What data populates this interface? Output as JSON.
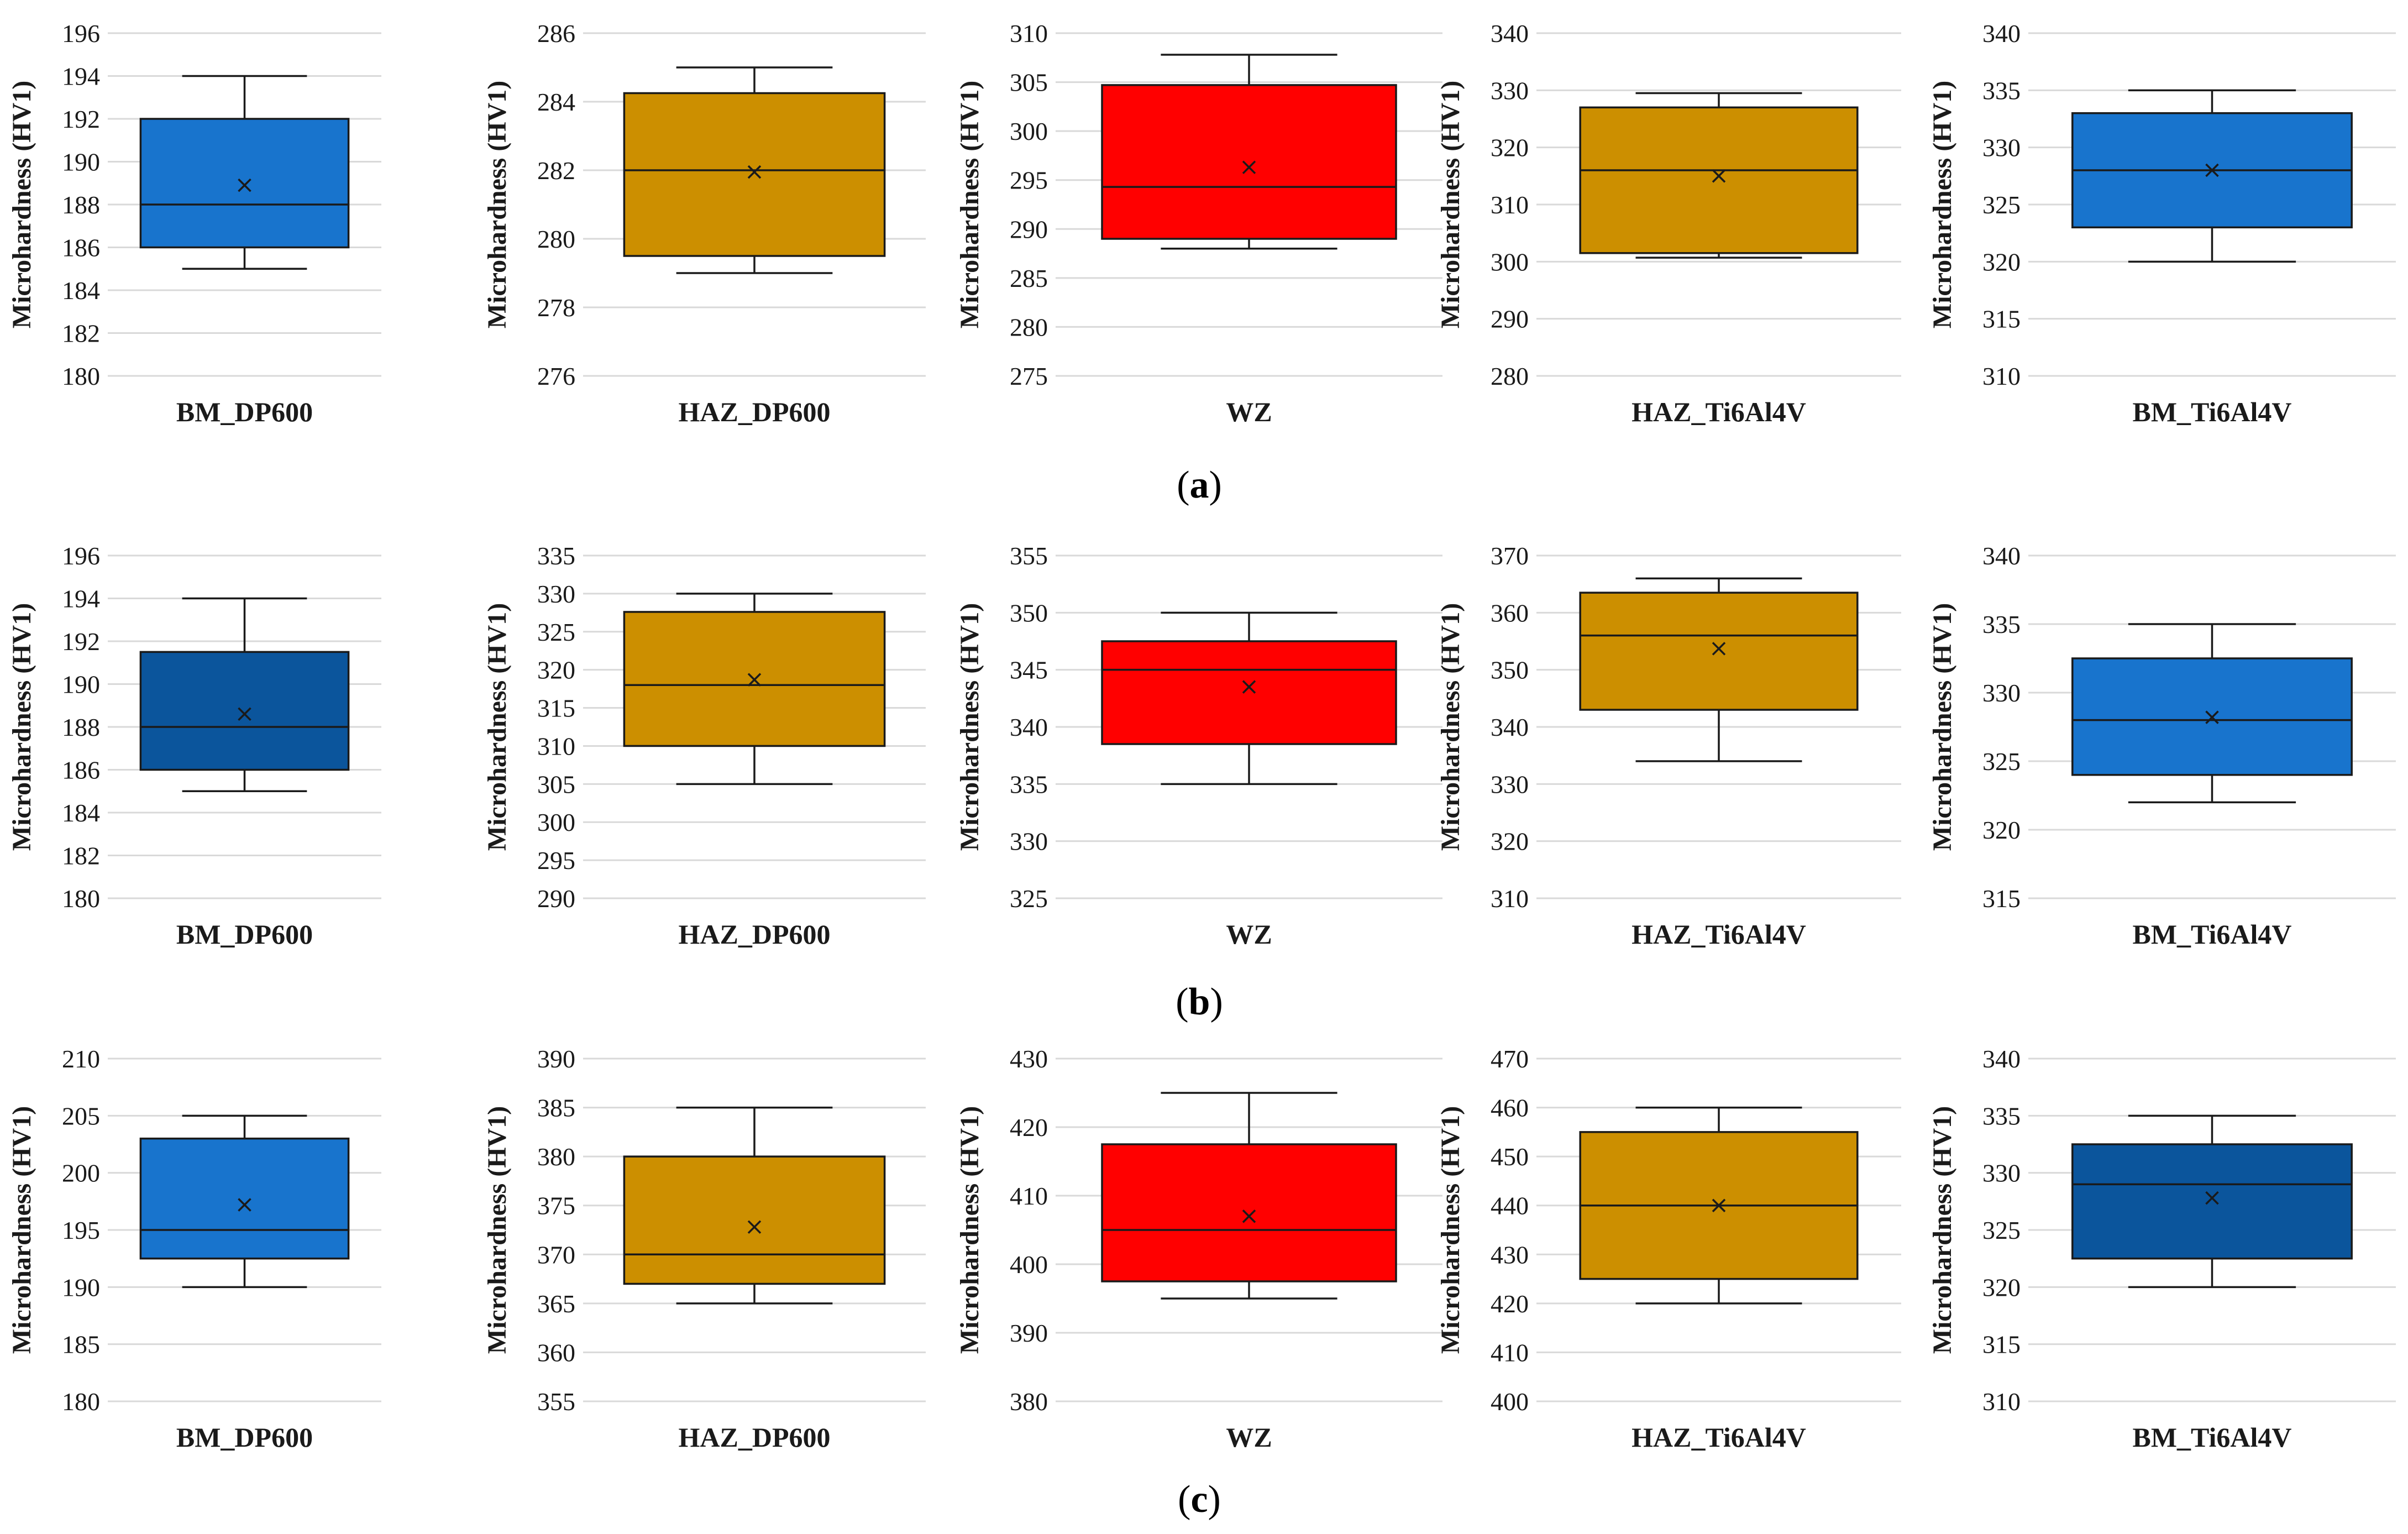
{
  "figure": {
    "captions": [
      "(a)",
      "(b)",
      "(c)"
    ],
    "caption_letters": [
      "a",
      "b",
      "c"
    ]
  },
  "colors": {
    "blue": "#1874cd",
    "dark_blue": "#0b559c",
    "gold": "#cc8f00",
    "red": "#ff0000"
  },
  "chart_data": [
    {
      "type": "box",
      "row": "a",
      "title": "BM_DP600",
      "ylabel": "Microhardness (HV1)",
      "ylim": [
        180,
        196
      ],
      "yticks": [
        180,
        182,
        184,
        186,
        188,
        190,
        192,
        194,
        196
      ],
      "color": "blue",
      "min": 185,
      "q1": 186,
      "median": 188,
      "q3": 192,
      "max": 194,
      "mean": 188.9
    },
    {
      "type": "box",
      "row": "a",
      "title": "HAZ_DP600",
      "ylabel": "Microhardness (HV1)",
      "ylim": [
        276,
        286
      ],
      "yticks": [
        276,
        278,
        280,
        282,
        284,
        286
      ],
      "color": "gold",
      "min": 279,
      "q1": 279.5,
      "median": 282,
      "q3": 284.25,
      "max": 285,
      "mean": 281.95
    },
    {
      "type": "box",
      "row": "a",
      "title": "WZ",
      "ylabel": "Microhardness (HV1)",
      "ylim": [
        275,
        310
      ],
      "yticks": [
        275,
        280,
        285,
        290,
        295,
        300,
        305,
        310
      ],
      "color": "red",
      "min": 288,
      "q1": 289,
      "median": 294.3,
      "q3": 304.7,
      "max": 307.8,
      "mean": 296.3
    },
    {
      "type": "box",
      "row": "a",
      "title": "HAZ_Ti6Al4V",
      "ylabel": "Microhardness (HV1)",
      "ylim": [
        280,
        340
      ],
      "yticks": [
        280,
        290,
        300,
        310,
        320,
        330,
        340
      ],
      "color": "gold",
      "min": 300.7,
      "q1": 301.5,
      "median": 316,
      "q3": 327,
      "max": 329.5,
      "mean": 315
    },
    {
      "type": "box",
      "row": "a",
      "title": "BM_Ti6Al4V",
      "ylabel": "Microhardness (HV1)",
      "ylim": [
        310,
        340
      ],
      "yticks": [
        310,
        315,
        320,
        325,
        330,
        335,
        340
      ],
      "color": "blue",
      "min": 320,
      "q1": 323,
      "median": 328,
      "q3": 333,
      "max": 335,
      "mean": 328
    },
    {
      "type": "box",
      "row": "b",
      "title": "BM_DP600",
      "ylabel": "Microhardness (HV1)",
      "ylim": [
        180,
        196
      ],
      "yticks": [
        180,
        182,
        184,
        186,
        188,
        190,
        192,
        194,
        196
      ],
      "color": "dark_blue",
      "min": 185,
      "q1": 186,
      "median": 188,
      "q3": 191.5,
      "max": 194,
      "mean": 188.6
    },
    {
      "type": "box",
      "row": "b",
      "title": "HAZ_DP600",
      "ylabel": "Microhardness (HV1)",
      "ylim": [
        290,
        335
      ],
      "yticks": [
        290,
        295,
        300,
        305,
        310,
        315,
        320,
        325,
        330,
        335
      ],
      "color": "gold",
      "min": 305,
      "q1": 310,
      "median": 318,
      "q3": 327.6,
      "max": 330,
      "mean": 318.7
    },
    {
      "type": "box",
      "row": "b",
      "title": "WZ",
      "ylabel": "Microhardness (HV1)",
      "ylim": [
        325,
        355
      ],
      "yticks": [
        325,
        330,
        335,
        340,
        345,
        350,
        355
      ],
      "color": "red",
      "min": 335,
      "q1": 338.5,
      "median": 345,
      "q3": 347.5,
      "max": 350,
      "mean": 343.5
    },
    {
      "type": "box",
      "row": "b",
      "title": "HAZ_Ti6Al4V",
      "ylabel": "Microhardness (HV1)",
      "ylim": [
        310,
        370
      ],
      "yticks": [
        310,
        320,
        330,
        340,
        350,
        360,
        370
      ],
      "color": "gold",
      "min": 334,
      "q1": 343,
      "median": 356,
      "q3": 363.5,
      "max": 366,
      "mean": 353.7
    },
    {
      "type": "box",
      "row": "b",
      "title": "BM_Ti6Al4V",
      "ylabel": "Microhardness (HV1)",
      "ylim": [
        315,
        340
      ],
      "yticks": [
        315,
        320,
        325,
        330,
        335,
        340
      ],
      "color": "blue",
      "min": 322,
      "q1": 324,
      "median": 328,
      "q3": 332.5,
      "max": 335,
      "mean": 328.2
    },
    {
      "type": "box",
      "row": "c",
      "title": "BM_DP600",
      "ylabel": "Microhardness (HV1)",
      "ylim": [
        180,
        210
      ],
      "yticks": [
        180,
        185,
        190,
        195,
        200,
        205,
        210
      ],
      "color": "blue",
      "min": 190,
      "q1": 192.5,
      "median": 195,
      "q3": 203,
      "max": 205,
      "mean": 197.2
    },
    {
      "type": "box",
      "row": "c",
      "title": "HAZ_DP600",
      "ylabel": "Microhardness (HV1)",
      "ylim": [
        355,
        390
      ],
      "yticks": [
        355,
        360,
        365,
        370,
        375,
        380,
        385,
        390
      ],
      "color": "gold",
      "min": 365,
      "q1": 367,
      "median": 370,
      "q3": 380,
      "max": 385,
      "mean": 372.8
    },
    {
      "type": "box",
      "row": "c",
      "title": "WZ",
      "ylabel": "Microhardness (HV1)",
      "ylim": [
        380,
        430
      ],
      "yticks": [
        380,
        390,
        400,
        410,
        420,
        430
      ],
      "color": "red",
      "min": 395,
      "q1": 397.5,
      "median": 405,
      "q3": 417.5,
      "max": 425,
      "mean": 407
    },
    {
      "type": "box",
      "row": "c",
      "title": "HAZ_Ti6Al4V",
      "ylabel": "Microhardness (HV1)",
      "ylim": [
        400,
        470
      ],
      "yticks": [
        400,
        410,
        420,
        430,
        440,
        450,
        460,
        470
      ],
      "color": "gold",
      "min": 420,
      "q1": 425,
      "median": 440,
      "q3": 455,
      "max": 460,
      "mean": 440
    },
    {
      "type": "box",
      "row": "c",
      "title": "BM_Ti6Al4V",
      "ylabel": "Microhardness (HV1)",
      "ylim": [
        310,
        340
      ],
      "yticks": [
        310,
        315,
        320,
        325,
        330,
        335,
        340
      ],
      "color": "dark_blue",
      "min": 320,
      "q1": 322.5,
      "median": 329,
      "q3": 332.5,
      "max": 335,
      "mean": 327.8
    }
  ]
}
